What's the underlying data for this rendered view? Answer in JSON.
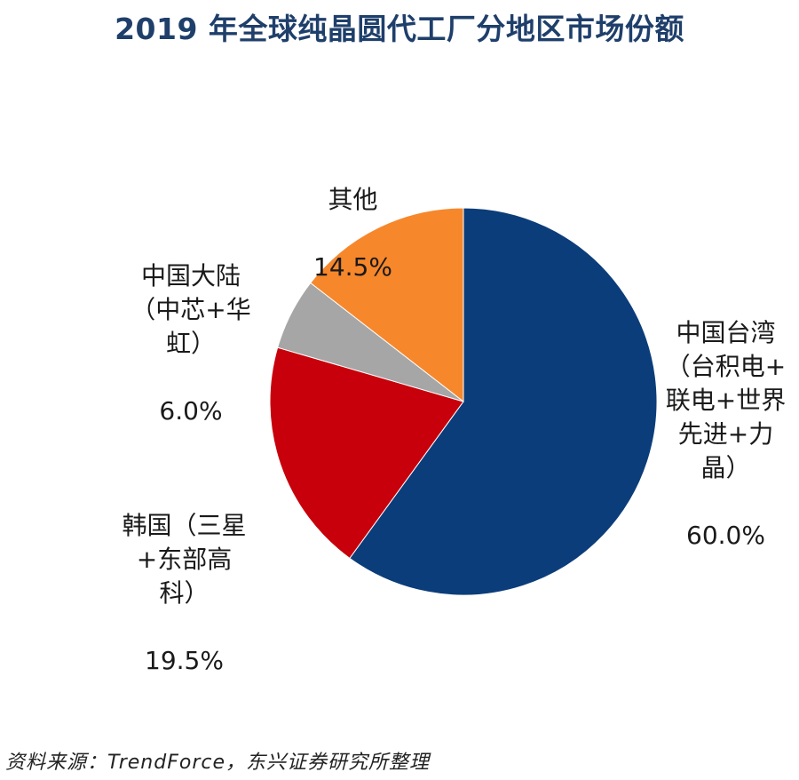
{
  "chart_data": {
    "type": "pie",
    "title": "2019 年全球纯晶圆代工厂分地区市场份额",
    "slices": [
      {
        "name": "中国台湾\n（台积电+\n联电+世界\n先进+力\n晶）",
        "value": 60.0,
        "label": "60.0%",
        "color": "#0b3d7a"
      },
      {
        "name": "韩国（三星\n+东部高\n科）",
        "value": 19.5,
        "label": "19.5%",
        "color": "#c8000b"
      },
      {
        "name": "中国大陆\n（中芯+华\n虹）",
        "value": 6.0,
        "label": "6.0%",
        "color": "#a6a6a6"
      },
      {
        "name": "其他",
        "value": 14.5,
        "label": "14.5%",
        "color": "#f7872b"
      }
    ]
  },
  "source": "资料来源：TrendForce，东兴证券研究所整理"
}
